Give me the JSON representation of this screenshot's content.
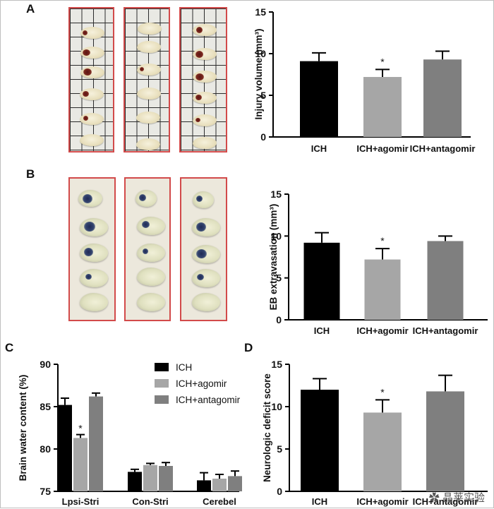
{
  "panels": {
    "a": "A",
    "b": "B",
    "c": "C",
    "d": "D"
  },
  "watermark": "晶莱实验",
  "chart_data": [
    {
      "type": "bar",
      "panel": "A",
      "categories": [
        "ICH",
        "ICH+agomir",
        "ICH+antagomir"
      ],
      "values": [
        9.1,
        7.2,
        9.3
      ],
      "errors": [
        1.0,
        0.9,
        1.0
      ],
      "significance": [
        "",
        "*",
        ""
      ],
      "colors": [
        "#000000",
        "#a6a6a6",
        "#7f7f7f"
      ],
      "ylabel": "Injury volume (mm³)",
      "ylim": [
        0,
        15
      ],
      "yticks": [
        0,
        5,
        10,
        15
      ]
    },
    {
      "type": "bar",
      "panel": "B",
      "categories": [
        "ICH",
        "ICH+agomir",
        "ICH+antagomir"
      ],
      "values": [
        9.2,
        7.2,
        9.4
      ],
      "errors": [
        1.2,
        1.3,
        0.6
      ],
      "significance": [
        "",
        "*",
        ""
      ],
      "colors": [
        "#000000",
        "#a6a6a6",
        "#7f7f7f"
      ],
      "ylabel": "EB extravasation (mm³)",
      "ylim": [
        0,
        15
      ],
      "yticks": [
        0,
        5,
        10,
        15
      ]
    },
    {
      "type": "bar",
      "panel": "C",
      "categories": [
        "Lpsi-Stri",
        "Con-Stri",
        "Cerebel"
      ],
      "series": [
        {
          "name": "ICH",
          "values": [
            85.2,
            77.3,
            76.3
          ],
          "errors": [
            0.8,
            0.3,
            0.9
          ],
          "color": "#000000"
        },
        {
          "name": "ICH+agomir",
          "values": [
            81.3,
            78.1,
            76.5
          ],
          "errors": [
            0.4,
            0.2,
            0.5
          ],
          "color": "#a6a6a6"
        },
        {
          "name": "ICH+antagomir",
          "values": [
            86.2,
            78.0,
            76.8
          ],
          "errors": [
            0.4,
            0.4,
            0.6
          ],
          "color": "#7f7f7f"
        }
      ],
      "significance": [
        [
          "",
          "*",
          ""
        ],
        [
          "",
          "",
          ""
        ],
        [
          "",
          "",
          ""
        ]
      ],
      "ylabel": "Brain water content (%)",
      "ylim": [
        75,
        90
      ],
      "yticks": [
        75,
        80,
        85,
        90
      ],
      "legend_position": "top-right"
    },
    {
      "type": "bar",
      "panel": "D",
      "categories": [
        "ICH",
        "ICH+agomir",
        "ICH+antagomir"
      ],
      "values": [
        12.0,
        9.3,
        11.8
      ],
      "errors": [
        1.3,
        1.5,
        1.9
      ],
      "significance": [
        "",
        "*",
        ""
      ],
      "colors": [
        "#000000",
        "#a6a6a6",
        "#7f7f7f"
      ],
      "ylabel": "Neurologic deficit score",
      "ylim": [
        0,
        15
      ],
      "yticks": [
        0,
        5,
        10,
        15
      ]
    }
  ]
}
